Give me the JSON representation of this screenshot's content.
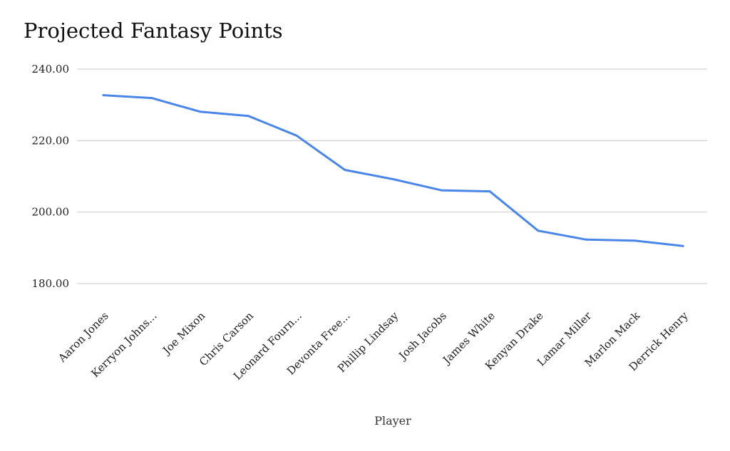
{
  "chart_data": {
    "type": "line",
    "title": "Projected Fantasy Points",
    "xlabel": "Player",
    "ylabel": "",
    "categories": [
      "Aaron Jones",
      "Kerryon Johns...",
      "Joe Mixon",
      "Chris Carson",
      "Leonard Fourn...",
      "Devonta Free...",
      "Phillip Lindsay",
      "Josh Jacobs",
      "James White",
      "Kenyan Drake",
      "Lamar Miller",
      "Marlon Mack",
      "Derrick Henry"
    ],
    "series": [
      {
        "name": "",
        "color": "#4a86e8",
        "values": [
          232.7,
          231.9,
          228.1,
          226.9,
          221.4,
          211.8,
          209.2,
          206.1,
          205.8,
          194.8,
          192.3,
          192.0,
          190.5
        ]
      }
    ],
    "ylim": [
      180,
      240
    ],
    "yticks": [
      "180.00",
      "200.00",
      "220.00",
      "240.00"
    ],
    "ytick_values": [
      180,
      200,
      220,
      240
    ],
    "grid": true,
    "legend": "none"
  }
}
